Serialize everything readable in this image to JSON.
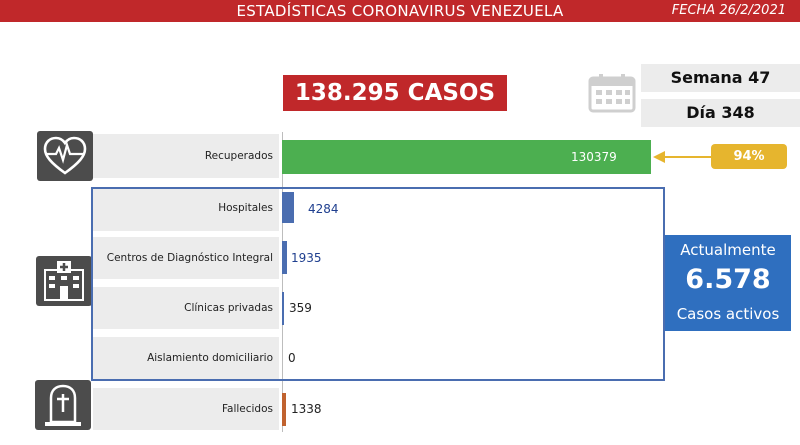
{
  "header": {
    "title": "ESTADÍSTICAS CORONAVIRUS VENEZUELA",
    "fecha": "FECHA 26/2/2021"
  },
  "casos_label": "138.295 CASOS",
  "semana": "Semana 47",
  "dia": "Día 348",
  "porcentaje_recuperados": "94%",
  "activos": {
    "line1": "Actualmente",
    "value": "6.578",
    "line2": "Casos activos"
  },
  "icons": {
    "recuperados": "heart-pulse-icon",
    "hospitales": "hospital-icon",
    "fallecidos": "tombstone-icon",
    "fecha": "calendar-icon"
  },
  "colors": {
    "header": "#c0282a",
    "recuperados": "#4caf50",
    "hospital_bars": "#4a6db0",
    "fallecidos": "#c0622f",
    "percent_badge": "#e6b52e",
    "activos": "#2f6fbf"
  },
  "chart_data": {
    "type": "bar",
    "orientation": "horizontal",
    "categories": [
      "Recuperados",
      "Hospitales",
      "Centros de Diagnóstico Integral",
      "Clínicas privadas",
      "Aislamiento domiciliario",
      "Fallecidos"
    ],
    "values": [
      130379,
      4284,
      1935,
      359,
      0,
      1338
    ],
    "value_labels": [
      "130379",
      "4284",
      "1935",
      "359",
      "0",
      "1338"
    ],
    "xlim": [
      0,
      130379
    ]
  }
}
